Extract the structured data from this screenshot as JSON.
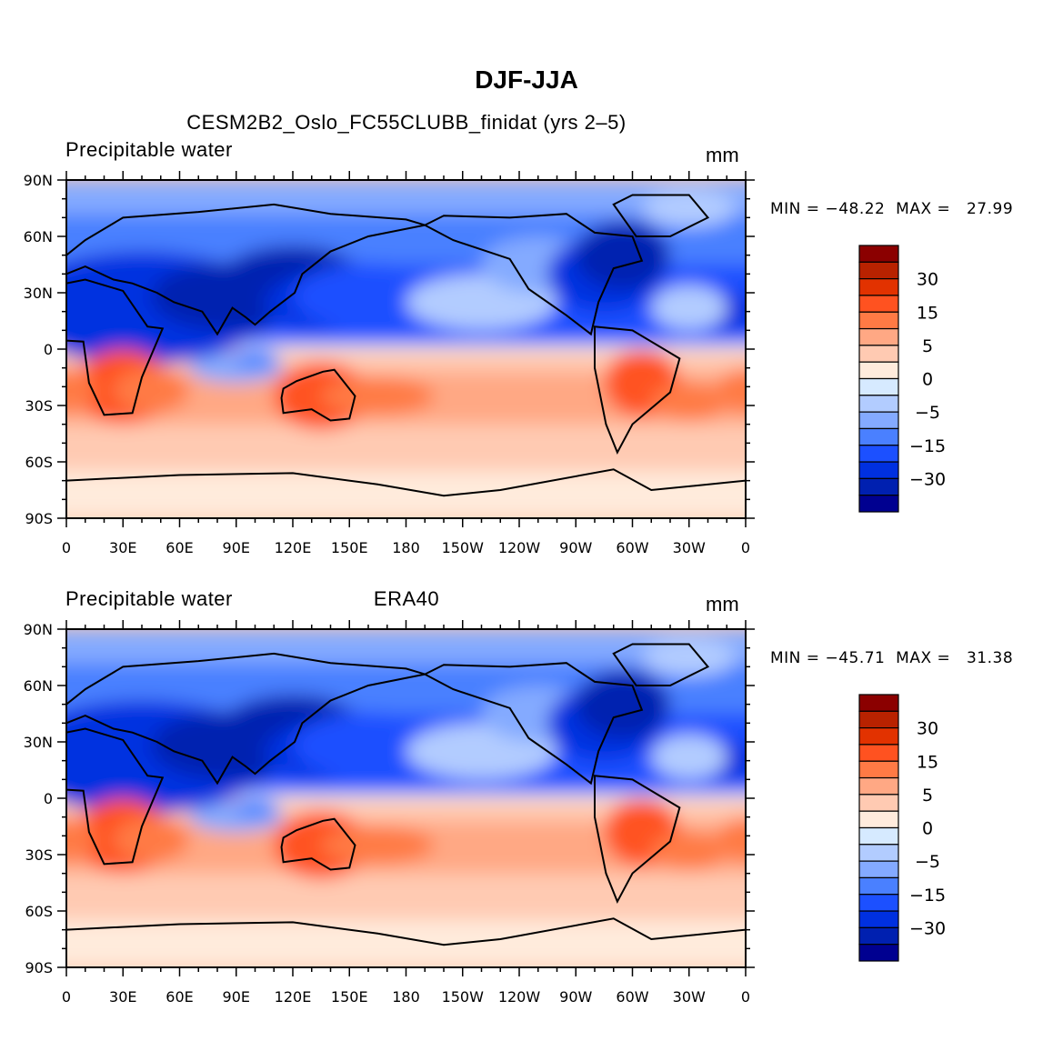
{
  "main_title": "DJF-JJA",
  "panels": [
    {
      "left_title": "Precipitable water",
      "center_title": "CESM2B2_Oslo_FC55CLUBB_finidat (yrs 2–5)",
      "units": "mm",
      "minmax": "MIN = −48.22  MAX =   27.99"
    },
    {
      "left_title": "Precipitable water",
      "center_title": "ERA40",
      "units": "mm",
      "minmax": "MIN = −45.71  MAX =   31.38"
    }
  ],
  "x_ticks": [
    "0",
    "30E",
    "60E",
    "90E",
    "120E",
    "150E",
    "180",
    "150W",
    "120W",
    "90W",
    "60W",
    "30W",
    "0"
  ],
  "y_ticks": [
    "90N",
    "60N",
    "30N",
    "0",
    "30S",
    "60S",
    "90S"
  ],
  "colorbar": {
    "labels": [
      "30",
      "15",
      "5",
      "0",
      "−5",
      "−15",
      "−30"
    ],
    "colors": [
      "#8b0000",
      "#b82200",
      "#e23200",
      "#ff5220",
      "#ff7a45",
      "#ffa884",
      "#ffcab2",
      "#ffebdc",
      "#d6eaff",
      "#b2ccff",
      "#84aaff",
      "#4a80ff",
      "#1c50ff",
      "#0030e0",
      "#0020b0",
      "#000090"
    ]
  }
}
